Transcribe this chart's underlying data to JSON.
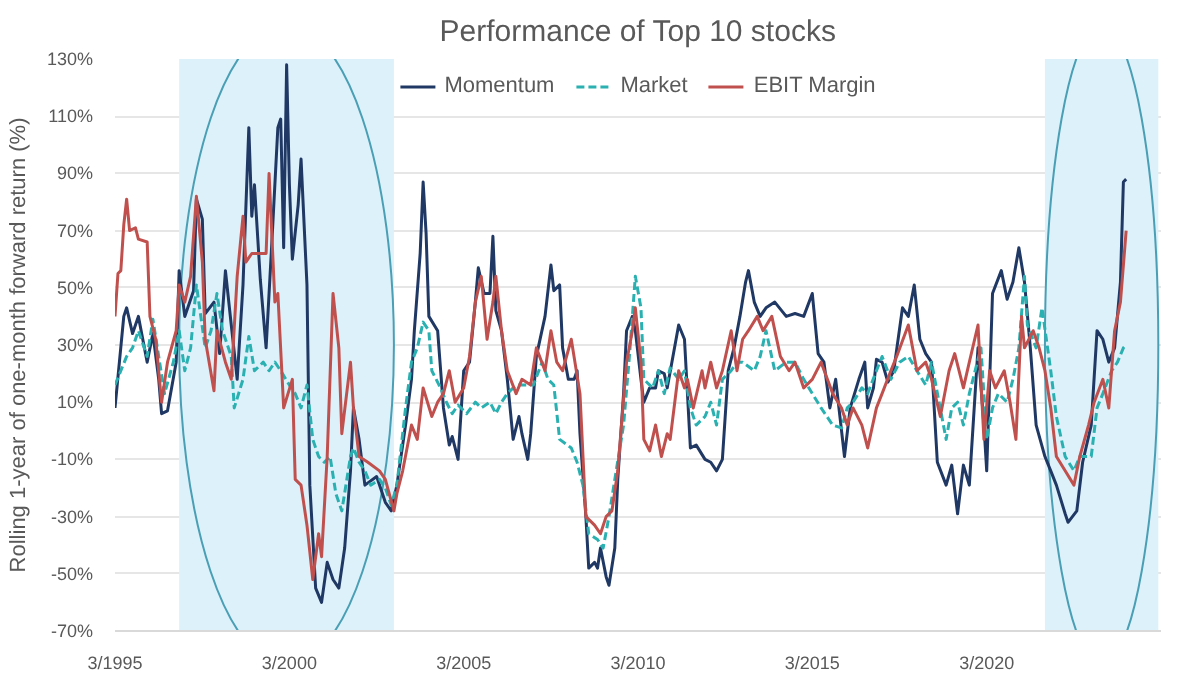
{
  "chart_data": {
    "type": "line",
    "title": "Performance of Top 10 stocks",
    "ylabel": "Rolling 1-year of one-month forward return (%)",
    "ylim": [
      -70,
      130
    ],
    "yticks": [
      {
        "value": -70,
        "label": "-70%"
      },
      {
        "value": -50,
        "label": "-50%"
      },
      {
        "value": -30,
        "label": "-30%"
      },
      {
        "value": -10,
        "label": "-10%"
      },
      {
        "value": 10,
        "label": "10%"
      },
      {
        "value": 30,
        "label": "30%"
      },
      {
        "value": 50,
        "label": "50%"
      },
      {
        "value": 70,
        "label": "70%"
      },
      {
        "value": 90,
        "label": "90%"
      },
      {
        "value": 110,
        "label": "110%"
      },
      {
        "value": 130,
        "label": "130%"
      }
    ],
    "xlim": [
      "1995-03",
      "2025-03"
    ],
    "xticks": [
      {
        "value": "1995-03",
        "label": "3/1995"
      },
      {
        "value": "2000-03",
        "label": "3/2000"
      },
      {
        "value": "2005-03",
        "label": "3/2005"
      },
      {
        "value": "2010-03",
        "label": "3/2010"
      },
      {
        "value": "2015-03",
        "label": "3/2015"
      },
      {
        "value": "2020-03",
        "label": "3/2020"
      }
    ],
    "grid": "y",
    "legend": "top",
    "marker": "none",
    "bands": [
      {
        "axis": "x",
        "from": "1997-01",
        "to": "2003-03",
        "color": "#ddf1fa"
      },
      {
        "axis": "x",
        "from": "2021-11",
        "to": "2025-02",
        "color": "#ddf1fa"
      }
    ],
    "series": [
      {
        "name": "Momentum",
        "color": "#203864",
        "line_style": "solid",
        "x": [
          "1995-03",
          "1995-06",
          "1995-07",
          "1995-09",
          "1995-11",
          "1996-02",
          "1996-04",
          "1996-06",
          "1996-07",
          "1996-09",
          "1996-12",
          "1997-01",
          "1997-03",
          "1997-06",
          "1997-07",
          "1997-09",
          "1997-10",
          "1998-01",
          "1998-03",
          "1998-05",
          "1998-07",
          "1998-09",
          "1998-11",
          "1999-01",
          "1999-02",
          "1999-03",
          "1999-05",
          "1999-07",
          "1999-09",
          "1999-11",
          "1999-12",
          "2000-01",
          "2000-02",
          "2000-03",
          "2000-04",
          "2000-06",
          "2000-07",
          "2000-09",
          "2000-10",
          "2000-12",
          "2001-02",
          "2001-04",
          "2001-06",
          "2001-08",
          "2001-10",
          "2001-12",
          "2002-01",
          "2002-03",
          "2002-05",
          "2002-09",
          "2002-12",
          "2003-02",
          "2003-04",
          "2003-07",
          "2003-09",
          "2003-10",
          "2003-12",
          "2004-01",
          "2004-02",
          "2004-03",
          "2004-06",
          "2004-08",
          "2004-10",
          "2004-11",
          "2005-01",
          "2005-03",
          "2005-05",
          "2005-07",
          "2005-08",
          "2005-10",
          "2005-12",
          "2006-01",
          "2006-02",
          "2006-04",
          "2006-06",
          "2006-08",
          "2006-10",
          "2006-11",
          "2007-01",
          "2007-02",
          "2007-04",
          "2007-07",
          "2007-09",
          "2007-10",
          "2007-12",
          "2008-01",
          "2008-03",
          "2008-05",
          "2008-06",
          "2008-07",
          "2008-09",
          "2008-10",
          "2008-12",
          "2009-01",
          "2009-02",
          "2009-04",
          "2009-05",
          "2009-07",
          "2009-08",
          "2009-10",
          "2009-11",
          "2010-01",
          "2010-02",
          "2010-04",
          "2010-05",
          "2010-07",
          "2010-09",
          "2010-10",
          "2010-12",
          "2011-01",
          "2011-05",
          "2011-07",
          "2011-09",
          "2011-11",
          "2012-02",
          "2012-04",
          "2012-06",
          "2012-08",
          "2012-10",
          "2012-12",
          "2013-02",
          "2013-04",
          "2013-05",
          "2013-07",
          "2013-09",
          "2013-11",
          "2014-02",
          "2014-06",
          "2014-09",
          "2014-12",
          "2015-03",
          "2015-05",
          "2015-07",
          "2015-09",
          "2015-11",
          "2016-02",
          "2016-04",
          "2016-07",
          "2016-09",
          "2016-10",
          "2016-12",
          "2017-01",
          "2017-03",
          "2017-05",
          "2017-07",
          "2017-10",
          "2017-12",
          "2018-02",
          "2018-04",
          "2018-06",
          "2018-08",
          "2018-10",
          "2019-01",
          "2019-03",
          "2019-05",
          "2019-07",
          "2019-09",
          "2019-12",
          "2020-02",
          "2020-03",
          "2020-05",
          "2020-08",
          "2020-10",
          "2020-12",
          "2021-02",
          "2021-04",
          "2021-06",
          "2021-08",
          "2021-11",
          "2022-01",
          "2022-03",
          "2022-06",
          "2022-07",
          "2022-10",
          "2022-12",
          "2023-03",
          "2023-05",
          "2023-07",
          "2023-09",
          "2023-11",
          "2024-01",
          "2024-02",
          "2024-03"
        ],
        "values": [
          8,
          40,
          43,
          34,
          40,
          24,
          34,
          18,
          6,
          7,
          24,
          56,
          40,
          49,
          81,
          74,
          41,
          45,
          27,
          56,
          37,
          18,
          51,
          106,
          75,
          86,
          53,
          29,
          67,
          106,
          109,
          64,
          128,
          86,
          60,
          79,
          95,
          51,
          -19,
          -55,
          -60,
          -46,
          -52,
          -55,
          -41,
          -14,
          8,
          -3,
          -19,
          -16,
          -25,
          -28,
          -19,
          2,
          18,
          35,
          62,
          87,
          69,
          40,
          35,
          8,
          -5,
          -2,
          -10,
          21,
          24,
          45,
          57,
          48,
          48,
          68,
          42,
          35,
          18,
          -3,
          5,
          -1,
          -10,
          -1,
          26,
          40,
          58,
          49,
          51,
          29,
          18,
          18,
          21,
          -1,
          -30,
          -48,
          -46,
          -48,
          -41,
          -51,
          -54,
          -41,
          -17,
          13,
          35,
          40,
          35,
          18,
          10,
          15,
          15,
          21,
          20,
          15,
          37,
          32,
          -6,
          -5,
          -10,
          -11,
          -14,
          -10,
          21,
          29,
          40,
          52,
          56,
          45,
          40,
          43,
          45,
          40,
          41,
          40,
          48,
          27,
          24,
          8,
          18,
          -9,
          8,
          18,
          24,
          8,
          15,
          25,
          24,
          17,
          21,
          43,
          40,
          51,
          32,
          27,
          24,
          -11,
          -19,
          -12,
          -29,
          -12,
          -19,
          29,
          2,
          -14,
          48,
          56,
          46,
          52,
          64,
          52,
          29,
          2,
          -9,
          -14,
          -19,
          -29,
          -32,
          -28,
          -11,
          2,
          35,
          32,
          24,
          29,
          52,
          87,
          88
        ]
      },
      {
        "name": "Market",
        "color": "#2ab0b0",
        "line_style": "dashed",
        "x": [
          "1995-03",
          "1995-05",
          "1995-07",
          "1995-09",
          "1995-11",
          "1996-02",
          "1996-04",
          "1996-06",
          "1996-08",
          "1996-11",
          "1997-01",
          "1997-03",
          "1997-05",
          "1997-07",
          "1997-10",
          "1997-12",
          "1998-02",
          "1998-04",
          "1998-07",
          "1998-08",
          "1998-11",
          "1999-01",
          "1999-03",
          "1999-06",
          "1999-08",
          "1999-10",
          "1999-12",
          "2000-03",
          "2000-05",
          "2000-07",
          "2000-09",
          "2000-11",
          "2001-01",
          "2001-03",
          "2001-05",
          "2001-07",
          "2001-09",
          "2001-12",
          "2002-01",
          "2002-03",
          "2002-05",
          "2002-07",
          "2002-10",
          "2002-12",
          "2003-02",
          "2003-04",
          "2003-07",
          "2003-09",
          "2003-11",
          "2004-01",
          "2004-03",
          "2004-04",
          "2004-07",
          "2004-09",
          "2004-11",
          "2005-01",
          "2005-04",
          "2005-07",
          "2005-09",
          "2005-12",
          "2006-02",
          "2006-04",
          "2006-06",
          "2006-09",
          "2006-12",
          "2007-03",
          "2007-06",
          "2007-08",
          "2007-10",
          "2007-12",
          "2008-04",
          "2008-06",
          "2008-08",
          "2008-10",
          "2009-01",
          "2009-03",
          "2009-05",
          "2009-07",
          "2009-10",
          "2009-12",
          "2010-02",
          "2010-04",
          "2010-05",
          "2010-08",
          "2010-10",
          "2010-12",
          "2011-02",
          "2011-05",
          "2011-07",
          "2011-09",
          "2011-11",
          "2012-02",
          "2012-04",
          "2012-06",
          "2012-08",
          "2012-11",
          "2013-01",
          "2013-03",
          "2013-07",
          "2013-09",
          "2013-11",
          "2014-02",
          "2014-06",
          "2014-09",
          "2014-12",
          "2015-03",
          "2015-06",
          "2015-10",
          "2016-01",
          "2016-03",
          "2016-05",
          "2016-08",
          "2016-10",
          "2017-01",
          "2017-03",
          "2017-06",
          "2017-09",
          "2017-12",
          "2018-03",
          "2018-06",
          "2018-08",
          "2019-01",
          "2019-03",
          "2019-05",
          "2019-07",
          "2019-09",
          "2020-01",
          "2020-03",
          "2020-05",
          "2020-07",
          "2020-10",
          "2020-12",
          "2021-02",
          "2021-04",
          "2021-05",
          "2021-08",
          "2021-10",
          "2022-01",
          "2022-03",
          "2022-06",
          "2022-09",
          "2022-11",
          "2023-03",
          "2023-05",
          "2023-07",
          "2023-10",
          "2023-12",
          "2024-02",
          "2024-03"
        ],
        "values": [
          16,
          21,
          26,
          29,
          35,
          26,
          39,
          26,
          13,
          24,
          35,
          21,
          29,
          51,
          29,
          35,
          48,
          35,
          26,
          8,
          18,
          33,
          21,
          24,
          21,
          24,
          21,
          16,
          13,
          8,
          16,
          -3,
          -9,
          -11,
          -9,
          -22,
          -28,
          -9,
          -6,
          -11,
          -14,
          -19,
          -17,
          -20,
          -26,
          -19,
          8,
          24,
          29,
          38,
          35,
          21,
          15,
          10,
          6,
          9,
          6,
          10,
          8,
          10,
          6,
          10,
          13,
          16,
          16,
          16,
          24,
          18,
          16,
          -3,
          -6,
          -11,
          -19,
          -36,
          -38,
          -41,
          -30,
          -17,
          2,
          26,
          54,
          43,
          18,
          15,
          21,
          13,
          22,
          18,
          21,
          8,
          2,
          5,
          10,
          2,
          18,
          21,
          24,
          24,
          21,
          26,
          35,
          21,
          24,
          24,
          18,
          13,
          8,
          2,
          1,
          8,
          10,
          15,
          13,
          21,
          26,
          18,
          24,
          26,
          21,
          16,
          24,
          -3,
          8,
          10,
          2,
          13,
          29,
          -3,
          8,
          13,
          10,
          18,
          29,
          54,
          37,
          29,
          43,
          21,
          5,
          -9,
          -14,
          -9,
          -9,
          8,
          13,
          21,
          24,
          29,
          30
        ]
      },
      {
        "name": "EBIT Margin",
        "color": "#c0504d",
        "line_style": "solid",
        "x": [
          "1995-03",
          "1995-04",
          "1995-05",
          "1995-06",
          "1995-07",
          "1995-08",
          "1995-10",
          "1995-11",
          "1996-02",
          "1996-03",
          "1996-05",
          "1996-07",
          "1996-09",
          "1996-12",
          "1997-01",
          "1997-03",
          "1997-05",
          "1997-07",
          "1997-09",
          "1997-10",
          "1998-01",
          "1998-02",
          "1998-05",
          "1998-07",
          "1998-09",
          "1998-11",
          "1998-12",
          "1999-02",
          "1999-05",
          "1999-07",
          "1999-08",
          "1999-10",
          "1999-11",
          "2000-01",
          "2000-04",
          "2000-05",
          "2000-07",
          "2000-09",
          "2000-11",
          "2001-01",
          "2001-02",
          "2001-04",
          "2001-06",
          "2001-08",
          "2001-09",
          "2001-12",
          "2002-01",
          "2002-03",
          "2002-06",
          "2002-10",
          "2002-12",
          "2003-03",
          "2003-04",
          "2003-06",
          "2003-09",
          "2003-11",
          "2004-01",
          "2004-04",
          "2004-06",
          "2004-08",
          "2004-10",
          "2004-12",
          "2005-03",
          "2005-05",
          "2005-07",
          "2005-09",
          "2005-11",
          "2006-01",
          "2006-02",
          "2006-04",
          "2006-06",
          "2006-09",
          "2006-11",
          "2007-02",
          "2007-04",
          "2007-07",
          "2007-09",
          "2007-11",
          "2008-01",
          "2008-04",
          "2008-07",
          "2008-09",
          "2008-12",
          "2009-02",
          "2009-04",
          "2009-06",
          "2009-08",
          "2009-11",
          "2010-01",
          "2010-02",
          "2010-04",
          "2010-05",
          "2010-07",
          "2010-09",
          "2010-11",
          "2011-01",
          "2011-02",
          "2011-05",
          "2011-07",
          "2011-08",
          "2011-10",
          "2012-01",
          "2012-02",
          "2012-04",
          "2012-06",
          "2012-08",
          "2012-11",
          "2013-01",
          "2013-03",
          "2013-05",
          "2013-08",
          "2013-10",
          "2014-01",
          "2014-04",
          "2014-07",
          "2014-09",
          "2014-12",
          "2015-03",
          "2015-06",
          "2015-10",
          "2016-01",
          "2016-03",
          "2016-05",
          "2016-08",
          "2016-10",
          "2017-01",
          "2017-03",
          "2017-06",
          "2017-08",
          "2017-12",
          "2018-03",
          "2018-06",
          "2018-08",
          "2018-11",
          "2019-02",
          "2019-04",
          "2019-07",
          "2019-09",
          "2019-12",
          "2020-02",
          "2020-04",
          "2020-06",
          "2020-09",
          "2020-11",
          "2021-01",
          "2021-03",
          "2021-04",
          "2021-07",
          "2021-09",
          "2021-11",
          "2022-01",
          "2022-03",
          "2022-06",
          "2022-09",
          "2022-11",
          "2023-02",
          "2023-04",
          "2023-07",
          "2023-09",
          "2023-11",
          "2024-01",
          "2024-03"
        ],
        "values": [
          40,
          55,
          56,
          72,
          81,
          70,
          71,
          67,
          66,
          40,
          32,
          10,
          24,
          35,
          51,
          45,
          54,
          82,
          59,
          32,
          14,
          35,
          24,
          18,
          54,
          75,
          59,
          62,
          62,
          62,
          90,
          45,
          48,
          8,
          18,
          -17,
          -19,
          -33,
          -52,
          -36,
          -44,
          -9,
          48,
          29,
          -1,
          24,
          8,
          -9,
          -11,
          -14,
          -17,
          -28,
          -22,
          -14,
          2,
          -3,
          15,
          5,
          10,
          13,
          21,
          10,
          15,
          26,
          45,
          54,
          32,
          45,
          54,
          35,
          21,
          13,
          18,
          16,
          29,
          21,
          35,
          24,
          21,
          32,
          13,
          -30,
          -33,
          -36,
          -30,
          -28,
          -14,
          24,
          35,
          43,
          24,
          -3,
          -7,
          2,
          -9,
          -1,
          -3,
          21,
          15,
          18,
          8,
          21,
          15,
          24,
          15,
          21,
          35,
          21,
          32,
          35,
          40,
          35,
          40,
          26,
          21,
          24,
          15,
          18,
          24,
          13,
          8,
          2,
          8,
          2,
          -6,
          8,
          13,
          21,
          26,
          37,
          21,
          24,
          18,
          5,
          21,
          27,
          15,
          24,
          37,
          -3,
          21,
          15,
          21,
          10,
          -3,
          40,
          29,
          35,
          29,
          21,
          8,
          -9,
          -14,
          -19,
          -9,
          2,
          10,
          18,
          8,
          35,
          45,
          70
        ]
      }
    ]
  }
}
